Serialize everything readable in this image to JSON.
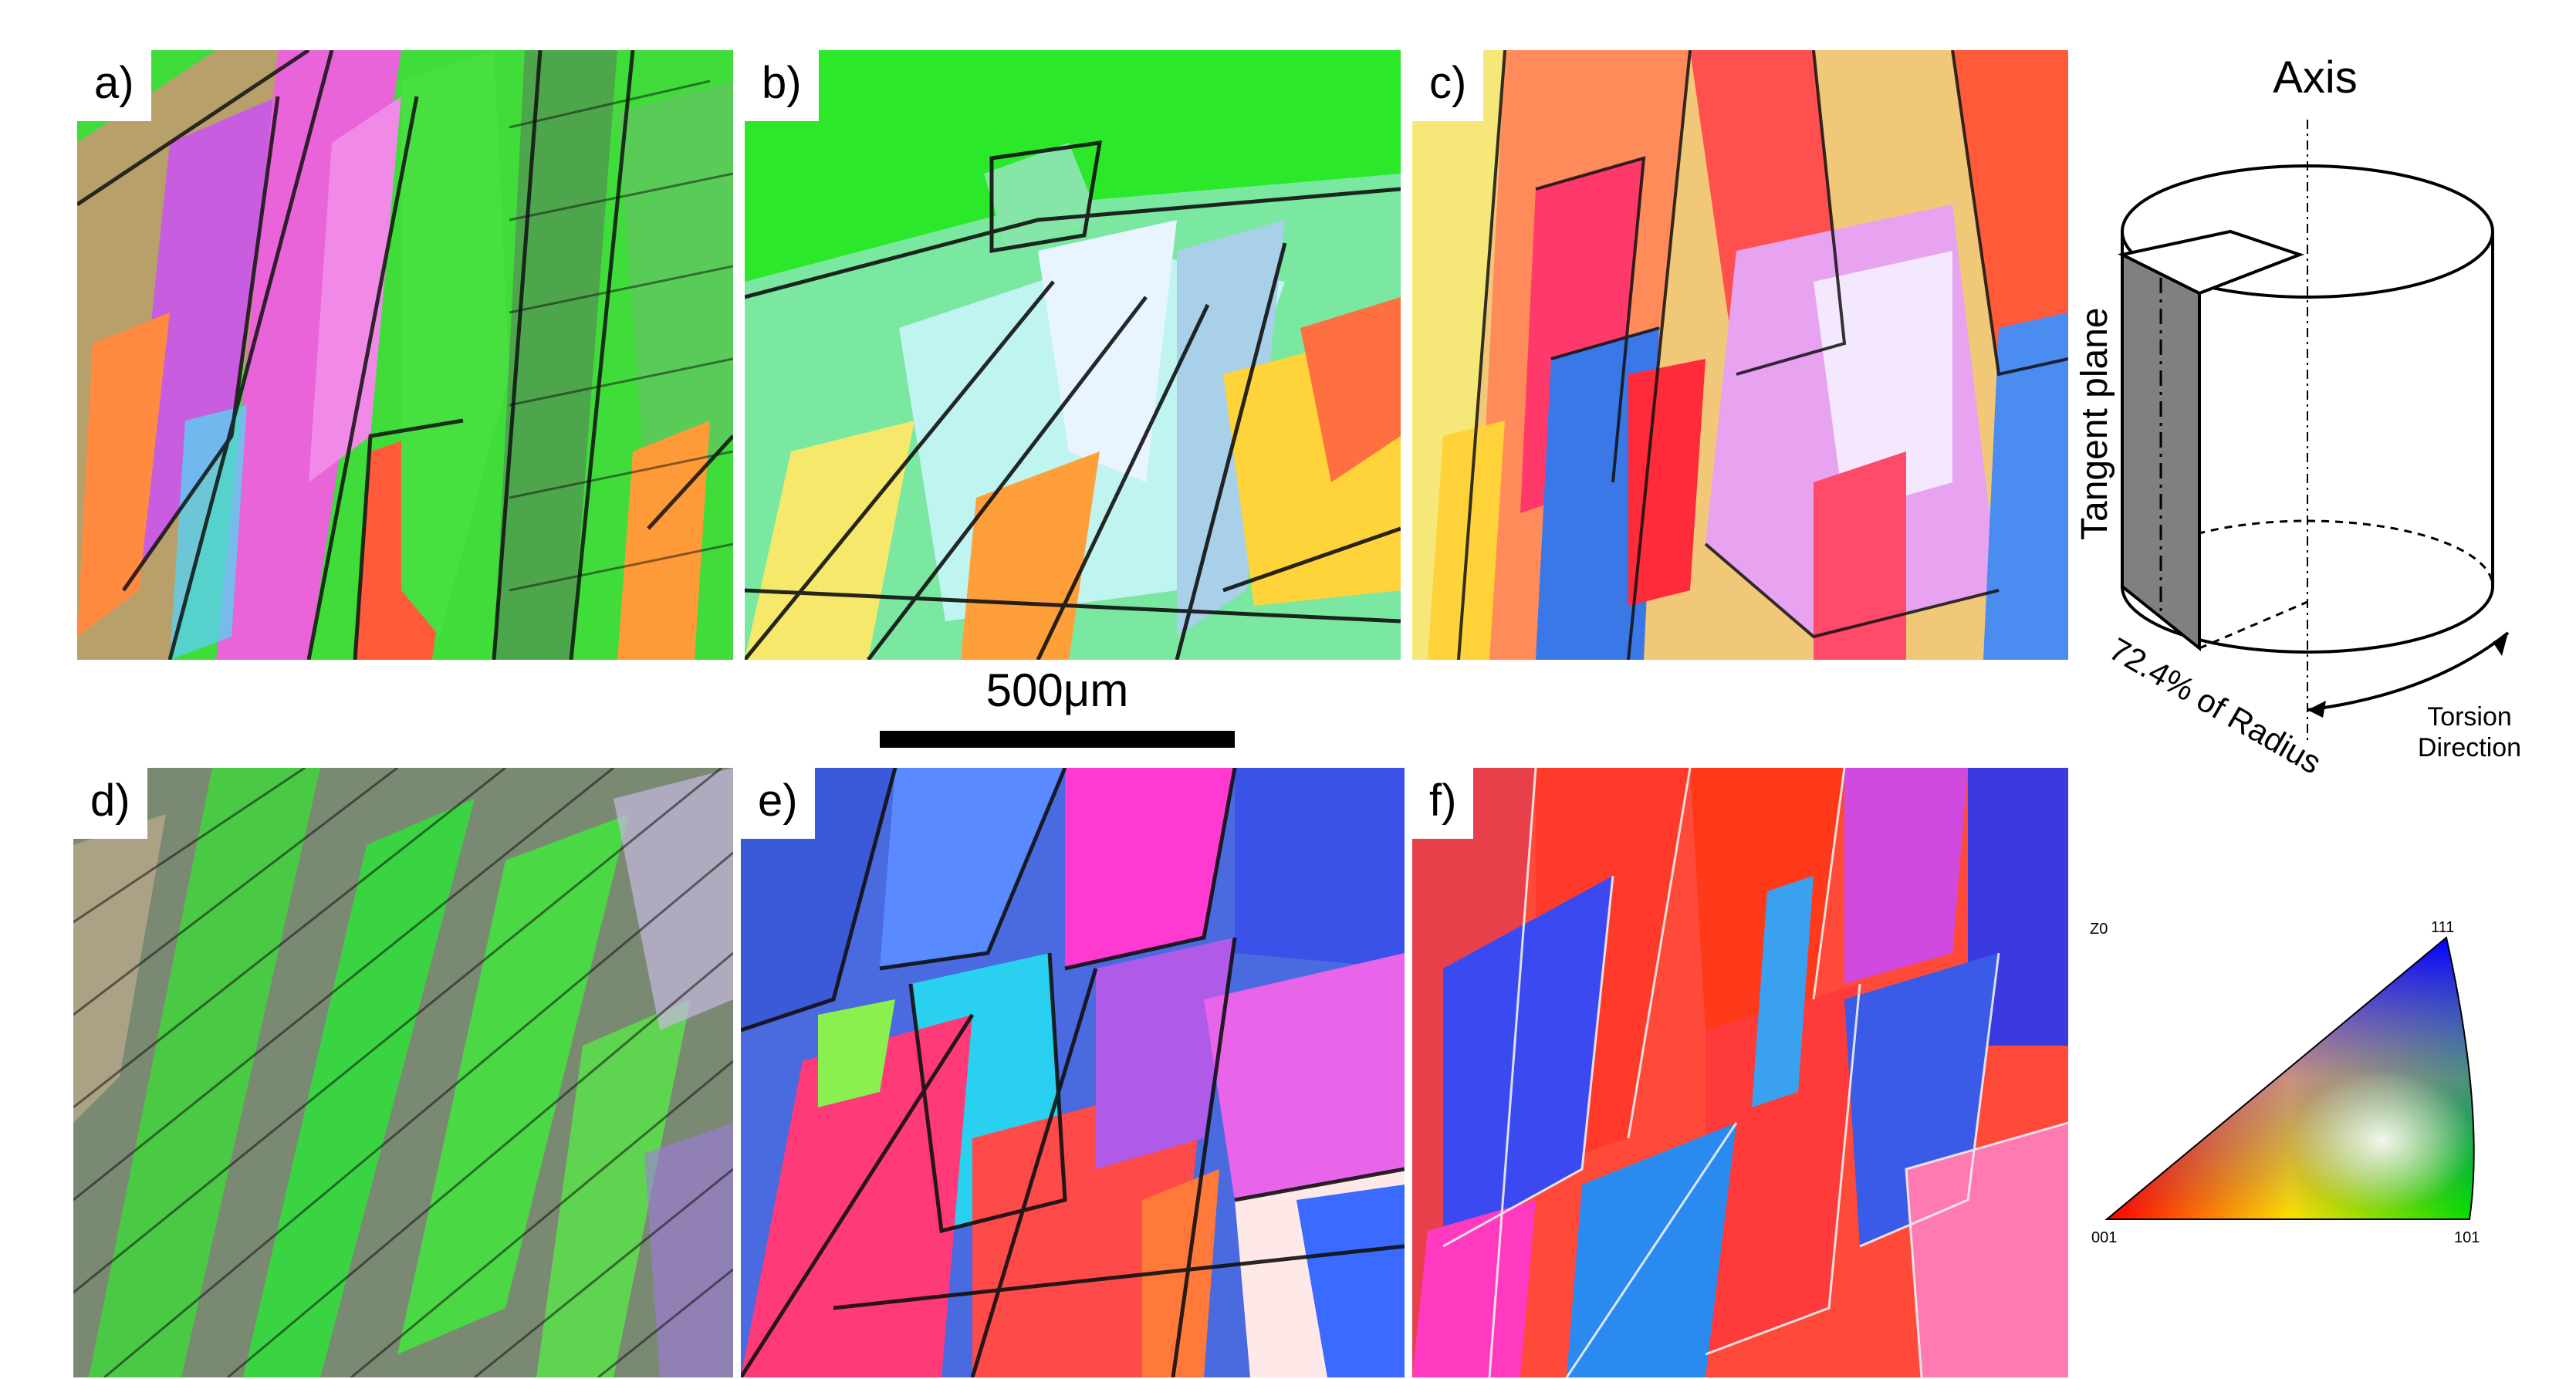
{
  "figure": {
    "panels": [
      {
        "label": "a)",
        "dominant": "mixed-green-magenta"
      },
      {
        "label": "b)",
        "dominant": "green-cyan"
      },
      {
        "label": "c)",
        "dominant": "magenta-red"
      },
      {
        "label": "d)",
        "dominant": "green-grey"
      },
      {
        "label": "e)",
        "dominant": "blue-red"
      },
      {
        "label": "f)",
        "dominant": "red-blue"
      }
    ],
    "scale_bar": {
      "label": "500μm"
    },
    "schematic": {
      "axis_label": "Axis",
      "tangent_label": "Tangent plane",
      "radius_label": "72.4% of Radius",
      "torsion_label_1": "Torsion",
      "torsion_label_2": "Direction"
    },
    "ipf_legend": {
      "z_label": "Z0",
      "corner_001": "001",
      "corner_101": "101",
      "corner_111": "111"
    }
  }
}
